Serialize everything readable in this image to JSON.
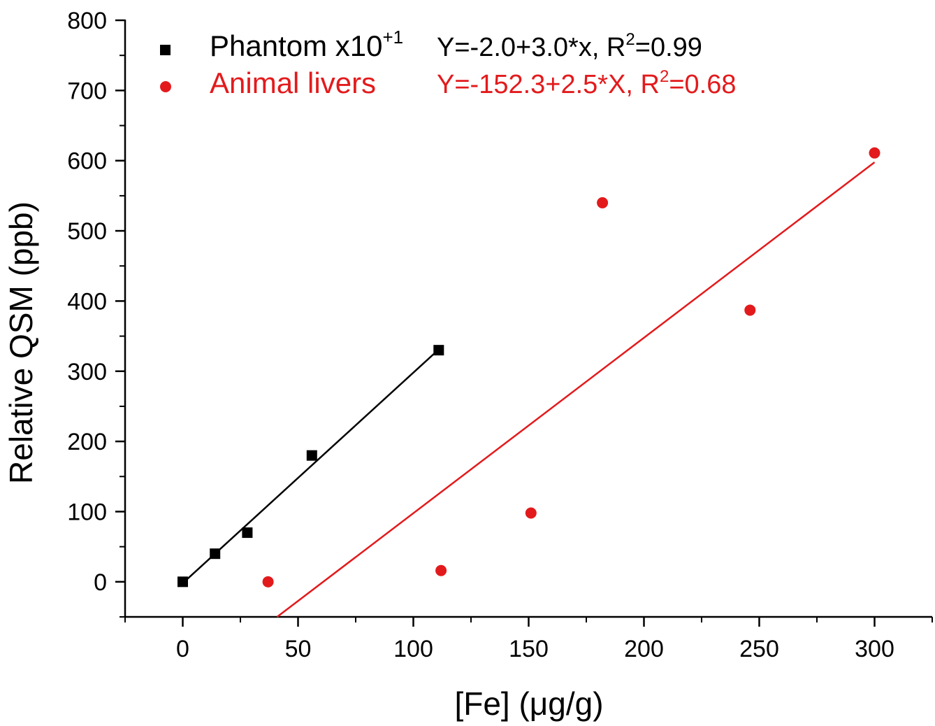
{
  "chart_data": {
    "type": "scatter",
    "title": "",
    "xlabel": "[Fe] (μg/g)",
    "ylabel": "Relative QSM (ppb)",
    "xlim": [
      -25,
      325
    ],
    "ylim": [
      -50,
      800
    ],
    "xticks": [
      0,
      50,
      100,
      150,
      200,
      250,
      300
    ],
    "yticks": [
      0,
      100,
      200,
      300,
      400,
      500,
      600,
      700,
      800
    ],
    "grid": false,
    "legend_position": "top-left",
    "series": [
      {
        "name": "Phantom x10",
        "name_superscript": "+1",
        "marker": "square",
        "color": "#000000",
        "x": [
          0,
          14,
          28,
          56,
          111
        ],
        "y": [
          0,
          40,
          70,
          180,
          330
        ],
        "fit": {
          "label": "Y=-2.0+3.0*x, R",
          "label_sup": "2",
          "label_tail": "=0.99",
          "intercept": -2.0,
          "slope": 3.0,
          "x_range": [
            0,
            111
          ]
        }
      },
      {
        "name": "Animal livers",
        "name_superscript": "",
        "marker": "circle",
        "color": "#e31a1c",
        "x": [
          37,
          112,
          151,
          182,
          246,
          300
        ],
        "y": [
          0,
          16,
          98,
          540,
          387,
          611
        ],
        "fit": {
          "label": "Y=-152.3+2.5*X, R",
          "label_sup": "2",
          "label_tail": "=0.68",
          "intercept": -152.3,
          "slope": 2.5,
          "x_range": [
            40.9,
            300
          ]
        }
      }
    ]
  }
}
